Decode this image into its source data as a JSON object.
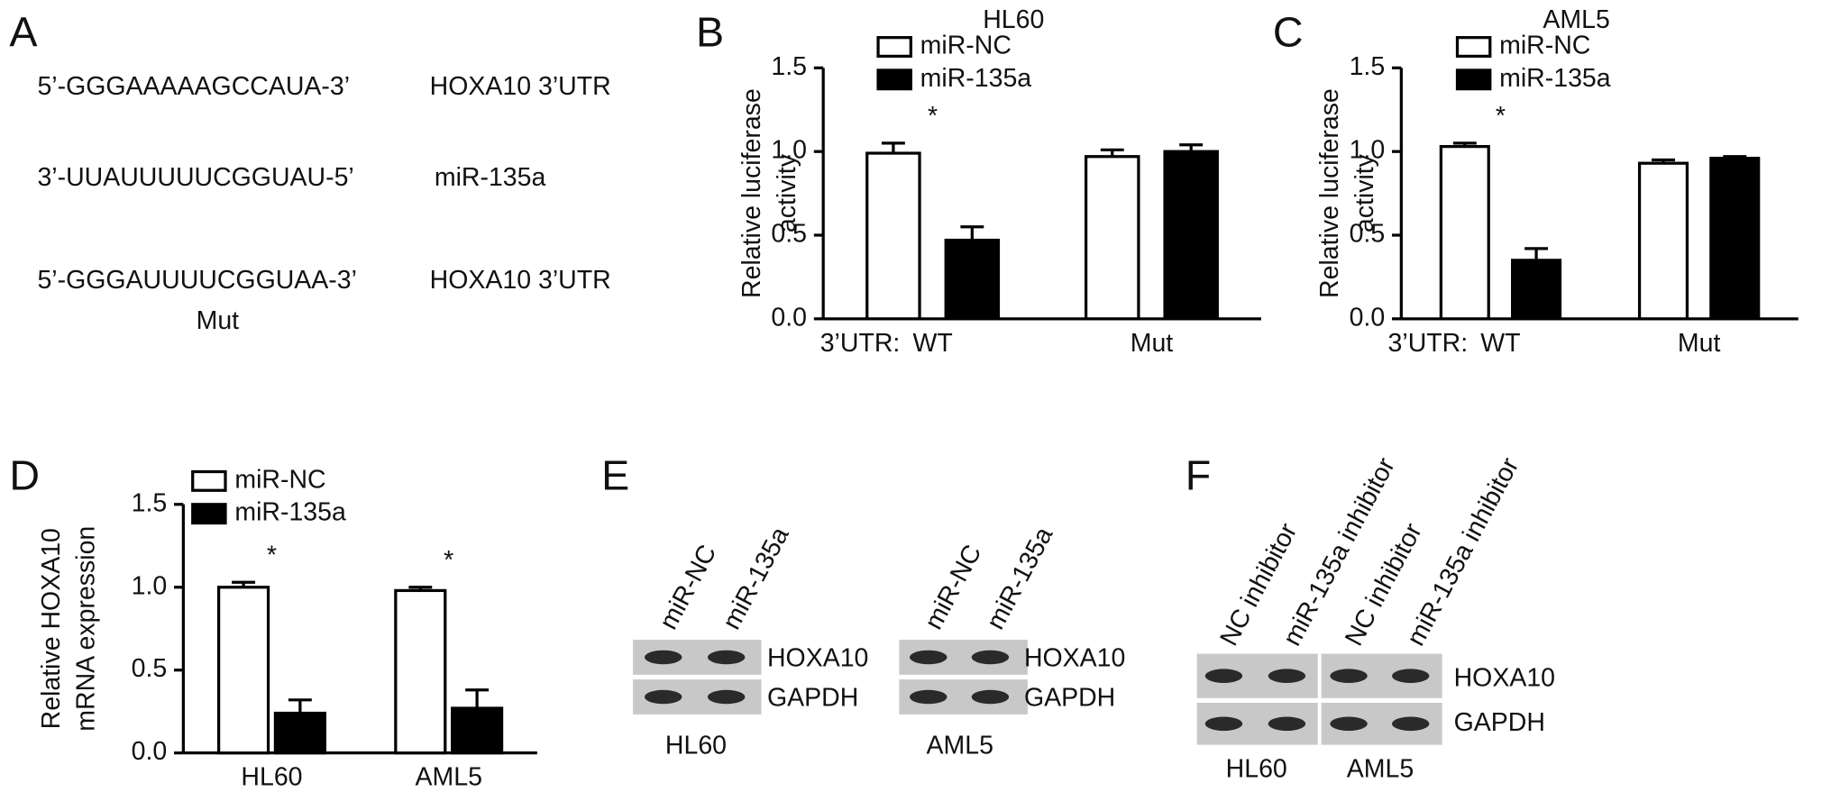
{
  "panel_labels": [
    "A",
    "B",
    "C",
    "D",
    "E",
    "F"
  ],
  "panel_a": {
    "rows": [
      {
        "sequence": "5’-GGGAAAAAGCCAUA-3’",
        "label": "HOXA10 3’UTR"
      },
      {
        "sequence": "3’-UUAUUUUUCGGUAU-5’",
        "label": "miR-135a"
      },
      {
        "sequence": "5’-GGGAUUUUCGGUAA-3’",
        "label": "HOXA10 3’UTR",
        "note": "Mut"
      }
    ]
  },
  "chart_data": [
    {
      "type": "bar",
      "title": "HL60",
      "x_prefix": "3’UTR:",
      "categories": [
        "WT",
        "Mut"
      ],
      "ylabel": [
        "Relative luciferase",
        "activity"
      ],
      "ylim": [
        0,
        1.5
      ],
      "yticks": [
        {
          "value": 0,
          "label": "0.0"
        },
        {
          "value": 0.5,
          "label": "0.5"
        },
        {
          "value": 1,
          "label": "1.0"
        },
        {
          "value": 1.5,
          "label": "1.5"
        }
      ],
      "series": [
        {
          "name": "miR-NC",
          "color": "#ffffff",
          "values": [
            0.99,
            0.97
          ],
          "errors": [
            0.06,
            0.04
          ]
        },
        {
          "name": "miR-135a",
          "color": "#000000",
          "values": [
            0.47,
            1.0
          ],
          "errors": [
            0.08,
            0.04
          ]
        }
      ],
      "annotations": [
        {
          "text": "*",
          "category": 0
        }
      ]
    },
    {
      "type": "bar",
      "title": "AML5",
      "x_prefix": "3’UTR:",
      "categories": [
        "WT",
        "Mut"
      ],
      "ylabel": [
        "Relative luciferase",
        "activity"
      ],
      "ylim": [
        0,
        1.5
      ],
      "yticks": [
        {
          "value": 0,
          "label": "0.0"
        },
        {
          "value": 0.5,
          "label": "0.5"
        },
        {
          "value": 1,
          "label": "1.0"
        },
        {
          "value": 1.5,
          "label": "1.5"
        }
      ],
      "series": [
        {
          "name": "miR-NC",
          "color": "#ffffff",
          "values": [
            1.03,
            0.93
          ],
          "errors": [
            0.02,
            0.02
          ]
        },
        {
          "name": "miR-135a",
          "color": "#000000",
          "values": [
            0.35,
            0.96
          ],
          "errors": [
            0.07,
            0.01
          ]
        }
      ],
      "annotations": [
        {
          "text": "*",
          "category": 0
        }
      ]
    },
    {
      "type": "bar",
      "categories": [
        "HL60",
        "AML5"
      ],
      "ylabel": [
        "Relative HOXA10",
        "mRNA expression"
      ],
      "ylim": [
        0,
        1.5
      ],
      "yticks": [
        {
          "value": 0,
          "label": "0.0"
        },
        {
          "value": 0.5,
          "label": "0.5"
        },
        {
          "value": 1,
          "label": "1.0"
        },
        {
          "value": 1.5,
          "label": "1.5"
        }
      ],
      "series": [
        {
          "name": "miR-NC",
          "color": "#ffffff",
          "values": [
            1.0,
            0.98
          ],
          "errors": [
            0.03,
            0.02
          ]
        },
        {
          "name": "miR-135a",
          "color": "#000000",
          "values": [
            0.24,
            0.27
          ],
          "errors": [
            0.08,
            0.11
          ]
        }
      ],
      "annotations": [
        {
          "text": "*",
          "category": 0
        },
        {
          "text": "*",
          "category": 1
        }
      ]
    }
  ],
  "panel_e": {
    "blots": [
      {
        "cell": "HL60",
        "lanes": [
          "miR-NC",
          "miR-135a"
        ],
        "proteins": [
          "HOXA10",
          "GAPDH"
        ]
      },
      {
        "cell": "AML5",
        "lanes": [
          "miR-NC",
          "miR-135a"
        ],
        "proteins": [
          "HOXA10",
          "GAPDH"
        ]
      }
    ]
  },
  "panel_f": {
    "lanes": [
      "NC inhibitor",
      "miR-135a inhibitor",
      "NC inhibitor",
      "miR-135a inhibitor"
    ],
    "cells": [
      "HL60",
      "AML5"
    ],
    "proteins": [
      "HOXA10",
      "GAPDH"
    ]
  }
}
